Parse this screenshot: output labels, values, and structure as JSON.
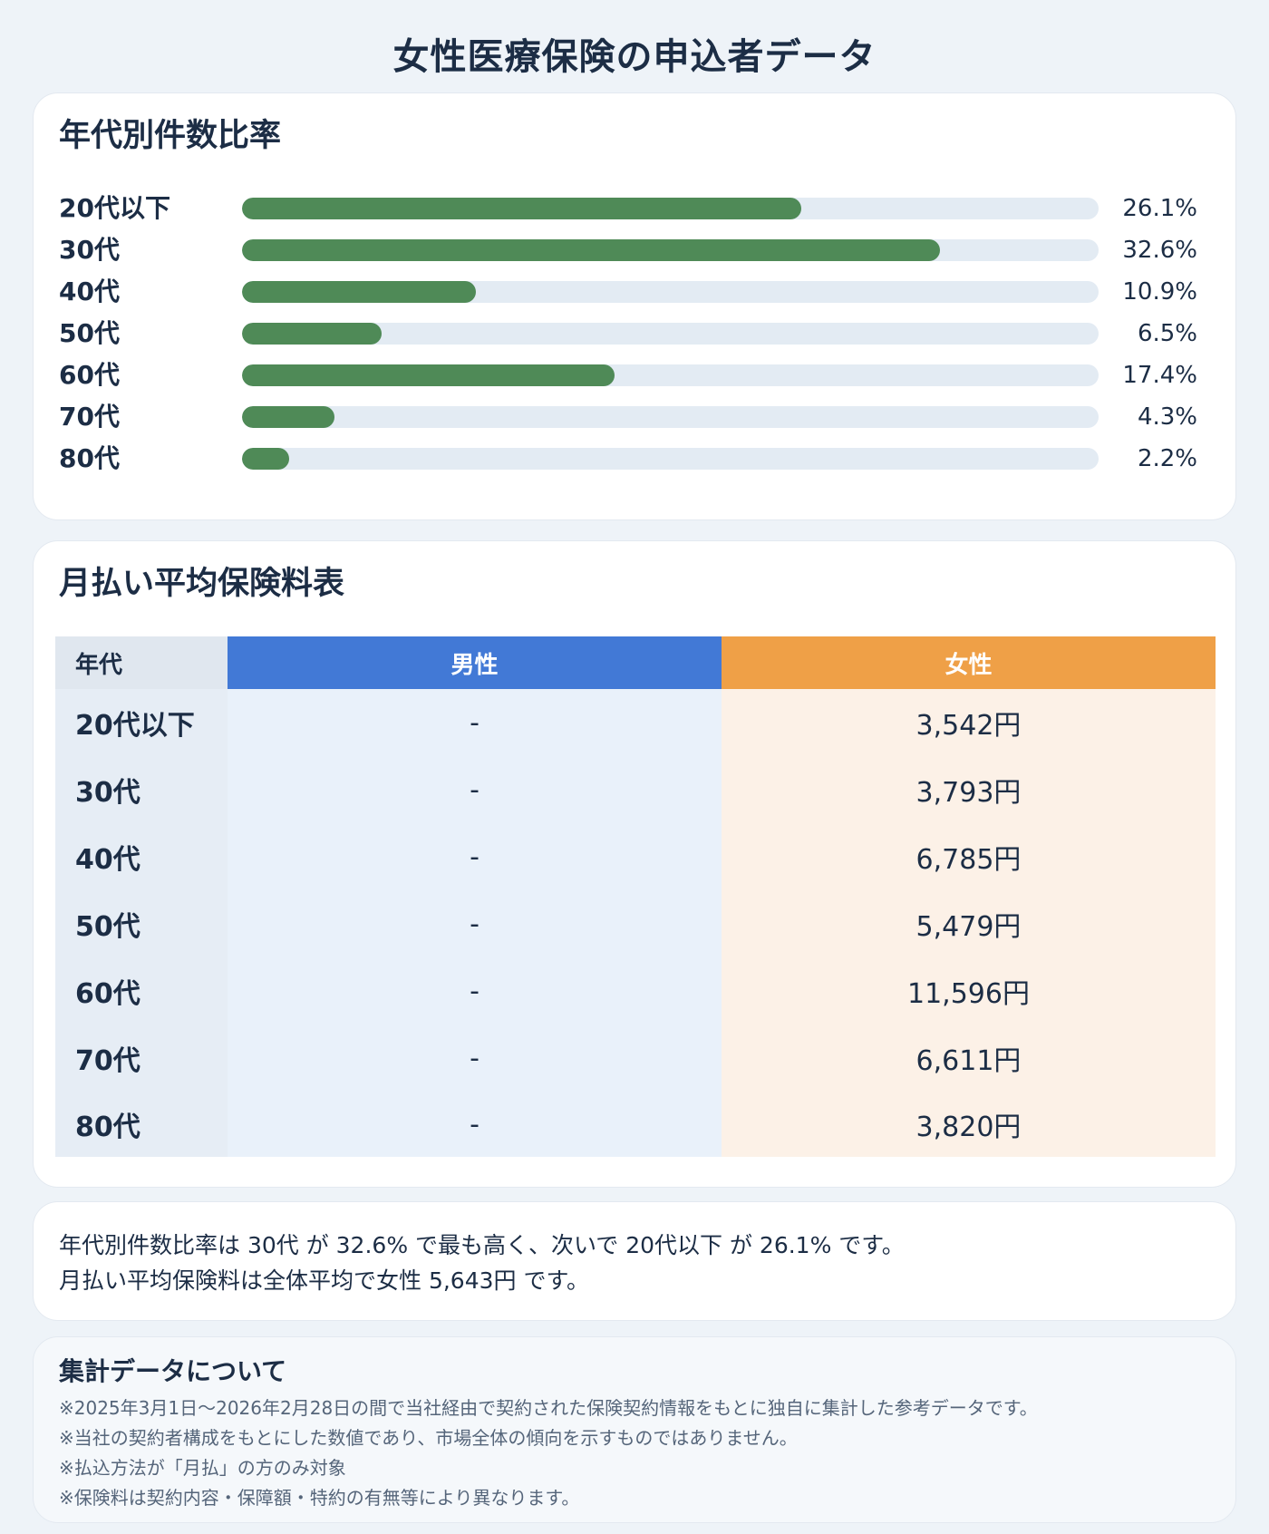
{
  "page": {
    "title": "女性医療保険の申込者データ"
  },
  "chart_data": [
    {
      "type": "bar",
      "orientation": "horizontal",
      "title": "年代別件数比率",
      "categories": [
        "20代以下",
        "30代",
        "40代",
        "50代",
        "60代",
        "70代",
        "80代"
      ],
      "values": [
        26.1,
        32.6,
        10.9,
        6.5,
        17.4,
        4.3,
        2.2
      ],
      "value_labels": [
        "26.1%",
        "32.6%",
        "10.9%",
        "6.5%",
        "17.4%",
        "4.3%",
        "2.2%"
      ],
      "xlim": [
        0,
        100
      ],
      "colors": {
        "bar": "#4f8a57",
        "track": "#e3ebf3"
      }
    },
    {
      "type": "table",
      "title": "月払い平均保険料表",
      "columns": [
        "年代",
        "男性",
        "女性"
      ],
      "rows": [
        [
          "20代以下",
          "-",
          "3,542円"
        ],
        [
          "30代",
          "-",
          "3,793円"
        ],
        [
          "40代",
          "-",
          "6,785円"
        ],
        [
          "50代",
          "-",
          "5,479円"
        ],
        [
          "60代",
          "-",
          "11,596円"
        ],
        [
          "70代",
          "-",
          "6,611円"
        ],
        [
          "80代",
          "-",
          "3,820円"
        ]
      ],
      "colors": {
        "male_header": "#4279d6",
        "female_header": "#efa047",
        "male_cell": "#e9f1fa",
        "female_cell": "#fcf1e7"
      }
    }
  ],
  "summary": {
    "lines": [
      "年代別件数比率は 30代 が 32.6% で最も高く、次いで 20代以下 が 26.1% です。",
      "月払い平均保険料は全体平均で女性 5,643円 です。"
    ]
  },
  "notes": {
    "title": "集計データについて",
    "lines": [
      "※2025年3月1日～2026年2月28日の間で当社経由で契約された保険契約情報をもとに独自に集計した参考データです。",
      "※当社の契約者構成をもとにした数値であり、市場全体の傾向を示すものではありません。",
      "※払込方法が「月払」の方のみ対象",
      "※保険料は契約内容・保障額・特約の有無等により異なります。"
    ]
  }
}
